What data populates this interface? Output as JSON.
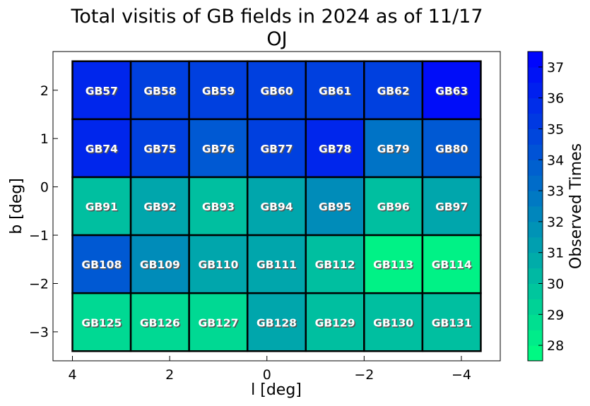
{
  "chart_data": {
    "type": "heatmap",
    "title": "Total visitis of GB fields in 2024 as of 11/17",
    "subtitle": "OJ",
    "xlabel": "l [deg]",
    "ylabel": "b [deg]",
    "colorbar_label": "Observed Times",
    "xlim": [
      4.4,
      -4.8
    ],
    "ylim": [
      -3.6,
      2.8
    ],
    "x_ticks": [
      4,
      2,
      0,
      -2,
      -4
    ],
    "x_tick_labels": [
      "4",
      "2",
      "0",
      "−2",
      "−4"
    ],
    "y_ticks": [
      2,
      1,
      0,
      -1,
      -2,
      -3
    ],
    "y_tick_labels": [
      "2",
      "1",
      "0",
      "−1",
      "−2",
      "−3"
    ],
    "cell_l_edges": [
      4.0,
      2.8,
      1.6,
      0.4,
      -0.8,
      -2.0,
      -3.2,
      -4.4
    ],
    "cell_b_edges": [
      2.6,
      1.4,
      0.2,
      -1.0,
      -2.2,
      -3.4
    ],
    "colorbar_range": [
      27.5,
      37.5
    ],
    "colorbar_ticks": [
      28,
      29,
      30,
      31,
      32,
      33,
      34,
      35,
      36,
      37
    ],
    "colormap": {
      "low": "#00ff80",
      "high": "#0000ff"
    },
    "grid": false,
    "fields": [
      [
        "GB57",
        "GB58",
        "GB59",
        "GB60",
        "GB61",
        "GB62",
        "GB63"
      ],
      [
        "GB74",
        "GB75",
        "GB76",
        "GB77",
        "GB78",
        "GB79",
        "GB80"
      ],
      [
        "GB91",
        "GB92",
        "GB93",
        "GB94",
        "GB95",
        "GB96",
        "GB97"
      ],
      [
        "GB108",
        "GB109",
        "GB110",
        "GB111",
        "GB112",
        "GB113",
        "GB114"
      ],
      [
        "GB125",
        "GB126",
        "GB127",
        "GB128",
        "GB129",
        "GB130",
        "GB131"
      ]
    ],
    "values": [
      [
        36,
        35,
        35,
        35,
        35,
        35,
        37
      ],
      [
        36,
        35,
        34,
        35,
        36,
        33,
        34
      ],
      [
        30,
        31,
        30,
        31,
        32,
        30,
        31
      ],
      [
        34,
        32,
        31,
        31,
        30,
        28,
        28
      ],
      [
        29,
        29,
        29,
        31,
        30,
        30,
        30
      ]
    ]
  }
}
